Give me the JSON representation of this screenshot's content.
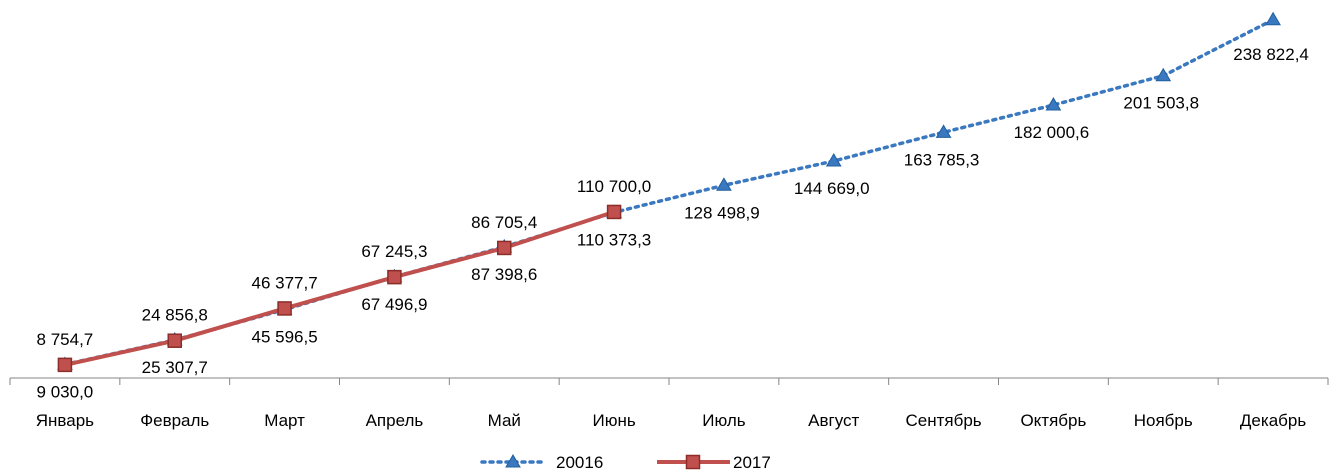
{
  "chart_data": {
    "type": "line",
    "categories": [
      "Январь",
      "Февраль",
      "Март",
      "Апрель",
      "Май",
      "Июнь",
      "Июль",
      "Август",
      "Сентябрь",
      "Октябрь",
      "Ноябрь",
      "Декабрь"
    ],
    "series": [
      {
        "name": "20016",
        "values": [
          9030.0,
          25307.7,
          45596.5,
          67496.9,
          87398.6,
          110373.3,
          128498.9,
          144669.0,
          163785.3,
          182000.6,
          201503.8,
          238822.4
        ],
        "labels": [
          "9 030,0",
          "25 307,7",
          "45 596,5",
          "67 496,9",
          "87 398,6",
          "110 373,3",
          "128 498,9",
          "144 669,0",
          "163 785,3",
          "182 000,6",
          "201 503,8",
          "238 822,4"
        ],
        "color": "#3a78c0",
        "line_style": "dotted",
        "marker": "triangle"
      },
      {
        "name": "2017",
        "values": [
          8754.7,
          24856.8,
          46377.7,
          67245.3,
          86705.4,
          110700.0,
          null,
          null,
          null,
          null,
          null,
          null
        ],
        "labels": [
          "8 754,7",
          "24 856,8",
          "46 377,7",
          "67 245,3",
          "86 705,4",
          "110 700,0",
          "",
          "",
          "",
          "",
          "",
          ""
        ],
        "color": "#c0504d",
        "line_style": "solid",
        "marker": "square"
      }
    ],
    "ylim": [
      0,
      240000
    ],
    "legend_position": "bottom",
    "grid": false
  }
}
